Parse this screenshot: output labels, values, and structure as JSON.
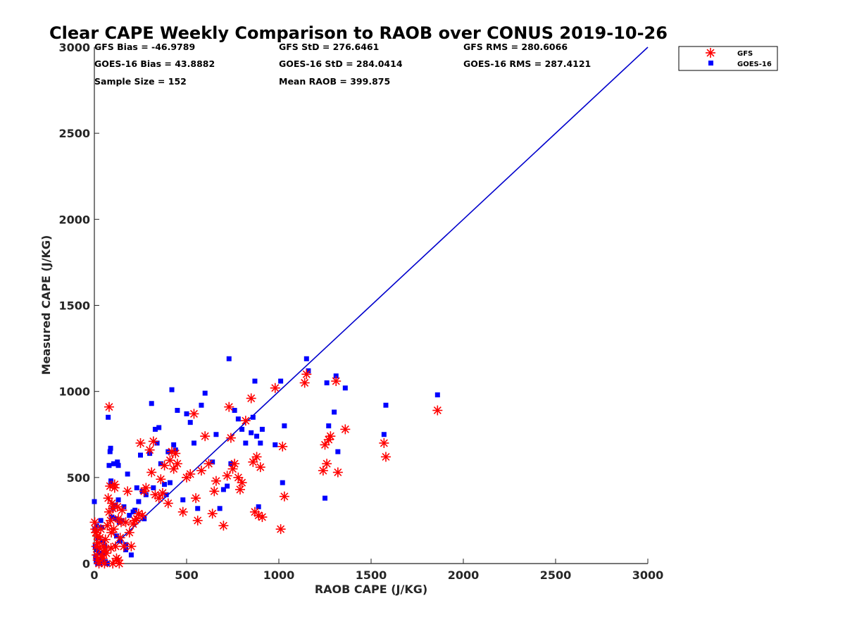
{
  "chart_data": {
    "type": "scatter",
    "title": "Clear CAPE Weekly Comparison to RAOB over CONUS 2019-10-26",
    "xlabel": "RAOB CAPE (J/KG)",
    "ylabel": "Measured CAPE (J/KG)",
    "xlim": [
      0,
      3000
    ],
    "ylim": [
      0,
      3000
    ],
    "xticks": [
      "0",
      "500",
      "1000",
      "1500",
      "2000",
      "2500",
      "3000"
    ],
    "yticks": [
      "0",
      "500",
      "1000",
      "1500",
      "2000",
      "2500",
      "3000"
    ],
    "grid": false,
    "legend_position": "top-right",
    "stats": {
      "gfs_bias": "GFS Bias = -46.9789",
      "gfs_std": "GFS StD = 276.6461",
      "gfs_rms": "GFS RMS = 280.6066",
      "goes_bias": "GOES-16 Bias = 43.8882",
      "goes_std": "GOES-16 StD = 284.0414",
      "goes_rms": "GOES-16 RMS = 287.4121",
      "sample_size": "Sample Size = 152",
      "mean_raob": "Mean RAOB = 399.875"
    },
    "reference_line": {
      "x": [
        0,
        3000
      ],
      "y": [
        0,
        3000
      ],
      "color": "#0000cc"
    },
    "series": [
      {
        "name": "GFS",
        "marker": "asterisk",
        "color": "#ff0000",
        "x": [
          2,
          5,
          8,
          10,
          12,
          15,
          18,
          20,
          25,
          28,
          30,
          35,
          40,
          45,
          50,
          55,
          60,
          65,
          70,
          75,
          80,
          85,
          88,
          92,
          95,
          100,
          105,
          110,
          115,
          120,
          125,
          130,
          135,
          140,
          145,
          150,
          160,
          170,
          180,
          190,
          200,
          210,
          220,
          230,
          240,
          250,
          260,
          270,
          280,
          300,
          310,
          320,
          330,
          350,
          360,
          370,
          380,
          400,
          410,
          420,
          430,
          440,
          450,
          480,
          500,
          520,
          540,
          550,
          560,
          580,
          600,
          620,
          640,
          650,
          660,
          700,
          720,
          730,
          740,
          750,
          760,
          780,
          790,
          800,
          820,
          850,
          860,
          870,
          880,
          890,
          900,
          910,
          980,
          1010,
          1020,
          1030,
          1140,
          1150,
          1240,
          1250,
          1260,
          1270,
          1280,
          1310,
          1320,
          1360,
          1570,
          1580,
          1860,
          80,
          90,
          100,
          110,
          130,
          60
        ],
        "y": [
          240,
          200,
          180,
          100,
          50,
          160,
          20,
          120,
          0,
          90,
          150,
          200,
          50,
          30,
          100,
          0,
          140,
          60,
          220,
          380,
          300,
          450,
          250,
          180,
          350,
          320,
          200,
          460,
          100,
          30,
          330,
          260,
          0,
          150,
          240,
          310,
          100,
          240,
          420,
          180,
          100,
          230,
          250,
          260,
          290,
          700,
          280,
          420,
          440,
          660,
          530,
          710,
          400,
          380,
          490,
          410,
          570,
          350,
          600,
          650,
          550,
          640,
          580,
          300,
          500,
          520,
          870,
          380,
          250,
          540,
          740,
          580,
          290,
          420,
          480,
          220,
          510,
          910,
          730,
          550,
          580,
          500,
          430,
          470,
          830,
          960,
          590,
          300,
          620,
          280,
          560,
          270,
          1020,
          200,
          680,
          390,
          1050,
          1100,
          540,
          690,
          580,
          720,
          740,
          1060,
          530,
          780,
          700,
          620,
          890,
          910,
          90,
          0,
          440,
          20,
          80
        ]
      },
      {
        "name": "GOES-16",
        "marker": "square",
        "color": "#0000ff",
        "x": [
          0,
          3,
          5,
          7,
          10,
          12,
          15,
          18,
          20,
          25,
          30,
          35,
          40,
          45,
          50,
          55,
          60,
          70,
          75,
          80,
          85,
          88,
          90,
          95,
          100,
          105,
          110,
          115,
          120,
          125,
          130,
          135,
          140,
          150,
          160,
          170,
          180,
          190,
          200,
          210,
          220,
          230,
          240,
          250,
          260,
          270,
          280,
          300,
          310,
          320,
          330,
          340,
          350,
          360,
          380,
          390,
          400,
          410,
          420,
          430,
          440,
          450,
          480,
          500,
          520,
          540,
          560,
          580,
          600,
          640,
          660,
          680,
          700,
          720,
          730,
          740,
          760,
          780,
          800,
          820,
          850,
          860,
          870,
          880,
          890,
          900,
          910,
          980,
          1010,
          1020,
          1030,
          1150,
          1160,
          1250,
          1260,
          1270,
          1300,
          1310,
          1320,
          1360,
          1570,
          1580,
          1860,
          10,
          40,
          90,
          130,
          170
        ],
        "y": [
          360,
          200,
          100,
          40,
          10,
          220,
          80,
          0,
          150,
          60,
          0,
          250,
          20,
          130,
          60,
          100,
          10,
          0,
          850,
          570,
          650,
          670,
          480,
          270,
          320,
          580,
          340,
          260,
          160,
          590,
          370,
          240,
          130,
          250,
          330,
          110,
          520,
          280,
          50,
          300,
          310,
          440,
          360,
          630,
          420,
          260,
          400,
          640,
          930,
          440,
          780,
          700,
          790,
          580,
          460,
          400,
          650,
          470,
          1010,
          690,
          660,
          890,
          370,
          870,
          820,
          700,
          320,
          920,
          990,
          590,
          750,
          320,
          430,
          450,
          1190,
          580,
          890,
          840,
          780,
          700,
          760,
          850,
          1060,
          740,
          330,
          700,
          780,
          690,
          1060,
          470,
          800,
          1190,
          1120,
          380,
          1050,
          800,
          880,
          1090,
          650,
          1020,
          750,
          920,
          980,
          30,
          210,
          470,
          570,
          80
        ]
      }
    ]
  }
}
